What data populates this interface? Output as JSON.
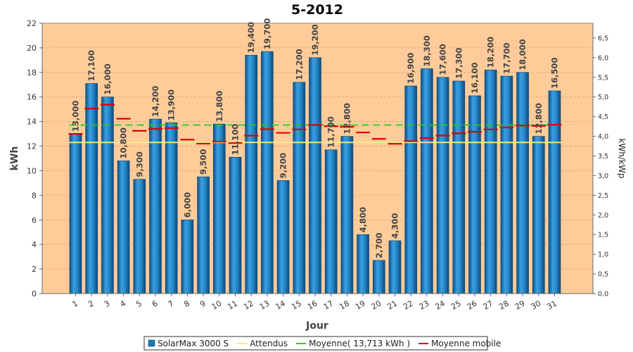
{
  "chart_data": {
    "type": "bar",
    "title": "5-2012",
    "xlabel": "Jour",
    "ylabel": "kWh",
    "y2label": "kWh/kWp",
    "ylim": [
      0,
      22
    ],
    "y_ticks": [
      "0",
      "2",
      "4",
      "6",
      "8",
      "10",
      "12",
      "14",
      "16",
      "18",
      "20",
      "22"
    ],
    "y2lim": [
      0,
      6.875
    ],
    "y2_ticks": [
      "0,0",
      "0,5",
      "1,0",
      "1,5",
      "2,0",
      "2,5",
      "3,0",
      "3,5",
      "4,0",
      "4,5",
      "5,0",
      "5,5",
      "6,0",
      "6,5"
    ],
    "categories": [
      "1",
      "2",
      "3",
      "4",
      "5",
      "6",
      "7",
      "8",
      "9",
      "10",
      "11",
      "12",
      "13",
      "14",
      "15",
      "16",
      "17",
      "18",
      "19",
      "20",
      "21",
      "22",
      "23",
      "24",
      "25",
      "26",
      "27",
      "28",
      "29",
      "30",
      "31"
    ],
    "grid": true,
    "legend_position": "bottom",
    "plot_background": "#ffcc99",
    "series": [
      {
        "name": "SolarMax 3000 S",
        "kind": "bar",
        "color": "#1f77b4",
        "values": [
          13.0,
          17.1,
          16.0,
          10.8,
          9.3,
          14.2,
          13.9,
          6.0,
          9.5,
          13.8,
          11.1,
          19.4,
          19.7,
          9.2,
          17.2,
          19.2,
          11.7,
          12.8,
          4.8,
          2.7,
          4.3,
          16.9,
          18.3,
          17.6,
          17.3,
          16.1,
          18.2,
          17.7,
          18.0,
          12.8,
          16.5
        ],
        "labels": [
          "13,000",
          "17,100",
          "16,000",
          "10,800",
          "9,300",
          "14,200",
          "13,900",
          "6,000",
          "9,500",
          "13,800",
          "11,100",
          "19,400",
          "19,700",
          "9,200",
          "17,200",
          "19,200",
          "11,700",
          "12,800",
          "4,800",
          "2,700",
          "4,300",
          "16,900",
          "18,300",
          "17,600",
          "17,300",
          "16,100",
          "18,200",
          "17,700",
          "18,000",
          "12,800",
          "16,500"
        ]
      },
      {
        "name": "Attendus",
        "kind": "line",
        "color": "#f0f080",
        "values": [
          12.3,
          12.3,
          12.3,
          12.3,
          12.3,
          12.3,
          12.3,
          12.3,
          12.3,
          12.3,
          12.3,
          12.3,
          12.3,
          12.3,
          12.3,
          12.3,
          12.3,
          12.3,
          12.3,
          12.3,
          12.3,
          12.3,
          12.3,
          12.3,
          12.3,
          12.3,
          12.3,
          12.3,
          12.3,
          12.3,
          12.3
        ]
      },
      {
        "name": "Moyenne( 13,713 kWh )",
        "kind": "line",
        "color": "#22cc22",
        "values": [
          13.713,
          13.713,
          13.713,
          13.713,
          13.713,
          13.713,
          13.713,
          13.713,
          13.713,
          13.713,
          13.713,
          13.713,
          13.713,
          13.713,
          13.713,
          13.713,
          13.713,
          13.713,
          13.713,
          13.713,
          13.713,
          13.713,
          13.713,
          13.713,
          13.713,
          13.713,
          13.713,
          13.713,
          13.713,
          13.713,
          13.713
        ]
      },
      {
        "name": "Moyenne mobile",
        "kind": "step",
        "color": "#dd0000",
        "values": [
          13.0,
          15.05,
          15.37,
          14.23,
          13.24,
          13.4,
          13.46,
          12.53,
          12.2,
          12.36,
          12.25,
          12.85,
          13.38,
          13.08,
          13.36,
          13.72,
          13.62,
          13.57,
          13.11,
          12.59,
          12.19,
          12.4,
          12.65,
          12.86,
          13.04,
          13.17,
          13.36,
          13.52,
          13.68,
          13.65,
          13.74
        ]
      }
    ]
  }
}
